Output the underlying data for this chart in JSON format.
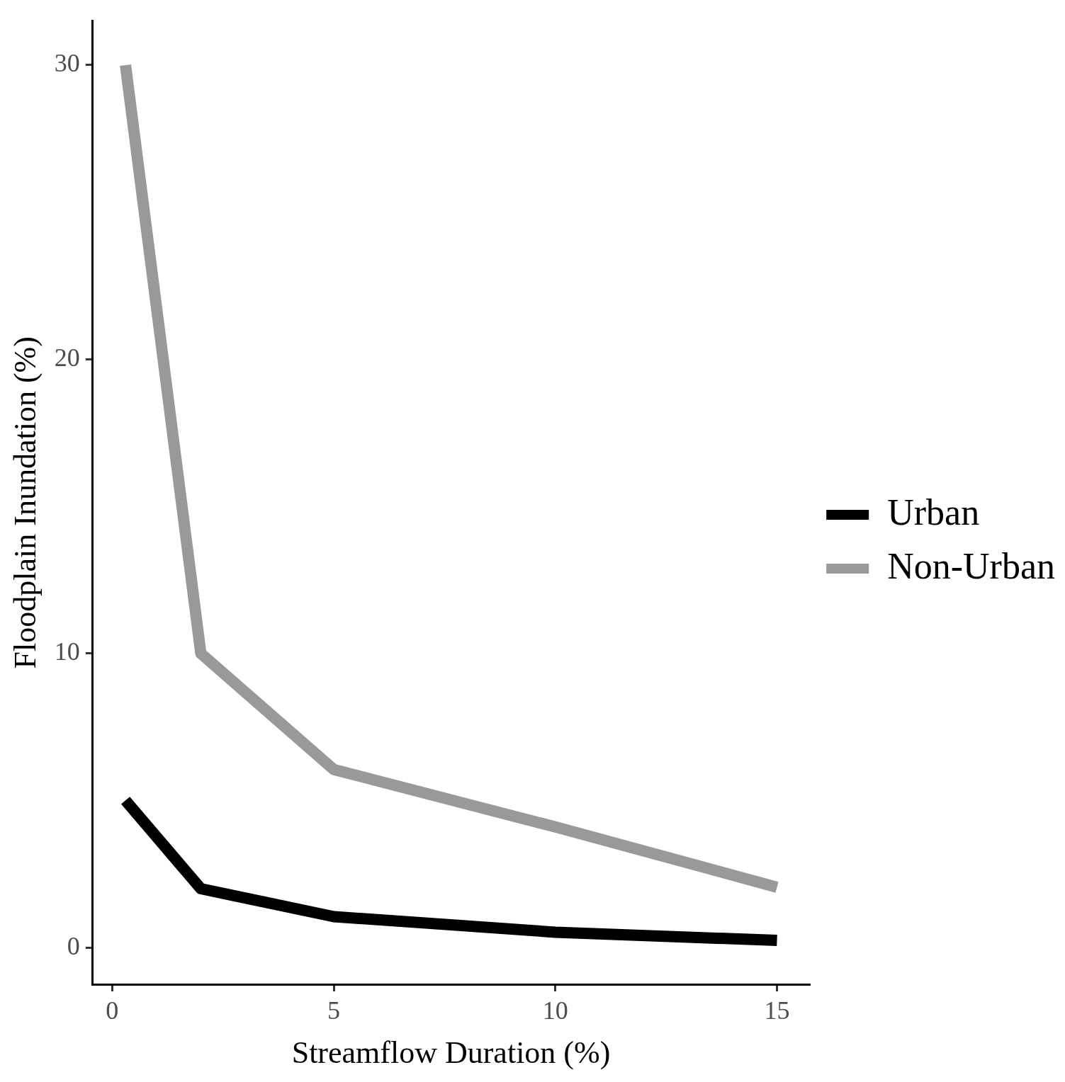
{
  "chart_data": {
    "type": "line",
    "xlabel": "Streamflow Duration (%)",
    "ylabel": "Floodplain Inundation (%)",
    "x": [
      0.3,
      2,
      5,
      10,
      15
    ],
    "series": [
      {
        "name": "Urban",
        "color": "#000000",
        "values": [
          5.0,
          2.0,
          1.05,
          0.52,
          0.24
        ]
      },
      {
        "name": "Non-Urban",
        "color": "#999999",
        "values": [
          30,
          10,
          6.05,
          4.1,
          2.05
        ]
      }
    ],
    "xlim": [
      -0.44,
      15.73
    ],
    "xticks": [
      0,
      5,
      10,
      15
    ],
    "ylim": [
      -1.25,
      31.5
    ],
    "yticks": [
      0,
      10,
      20,
      30
    ],
    "grid": false,
    "legend": "right",
    "marker": "none",
    "line_style": "solid"
  }
}
